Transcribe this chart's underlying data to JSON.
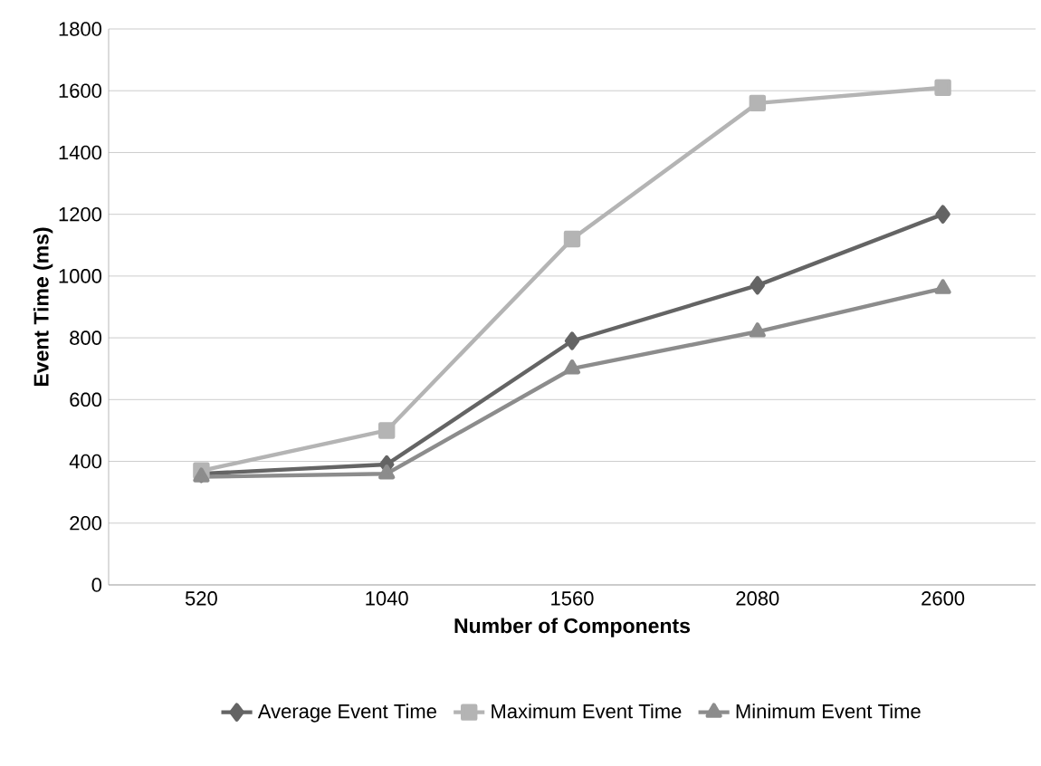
{
  "chart_data": {
    "type": "line",
    "xlabel": "Number of Components",
    "ylabel": "Event Time (ms)",
    "categories": [
      "520",
      "1040",
      "1560",
      "2080",
      "2600"
    ],
    "series": [
      {
        "name": "Average Event Time",
        "color": "#646464",
        "marker": "diamond",
        "values": [
          360,
          390,
          790,
          970,
          1200
        ]
      },
      {
        "name": "Maximum Event Time",
        "color": "#b4b4b4",
        "marker": "square",
        "values": [
          370,
          500,
          1120,
          1560,
          1610
        ]
      },
      {
        "name": "Minimum Event Time",
        "color": "#8c8c8c",
        "marker": "triangle",
        "values": [
          350,
          360,
          700,
          820,
          960
        ]
      }
    ],
    "ylim": [
      0,
      1800
    ],
    "yticks": [
      0,
      200,
      400,
      600,
      800,
      1000,
      1200,
      1400,
      1600,
      1800
    ],
    "grid": "y",
    "legend": "bottom",
    "line_style": "solid"
  }
}
